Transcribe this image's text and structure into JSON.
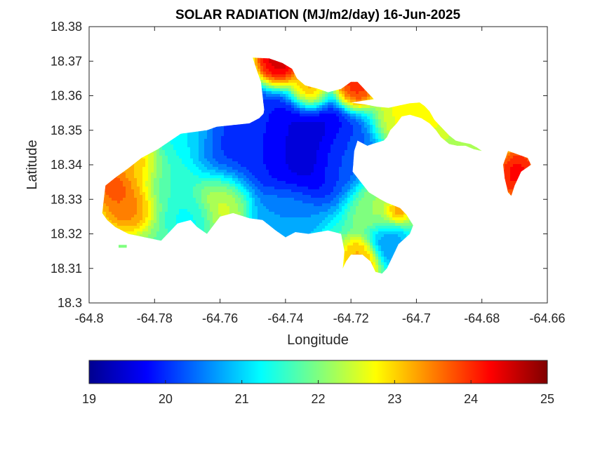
{
  "map": {
    "title": "SOLAR RADIATION (MJ/m2/day) 16-Jun-2025",
    "xlabel": "Longitude",
    "ylabel": "Latitude",
    "xlim": [
      -64.8,
      -64.66
    ],
    "ylim": [
      18.3,
      18.38
    ],
    "xticks": [
      "-64.8",
      "-64.78",
      "-64.76",
      "-64.74",
      "-64.72",
      "-64.7",
      "-64.68",
      "-64.66"
    ],
    "yticks": [
      "18.3",
      "18.31",
      "18.32",
      "18.33",
      "18.34",
      "18.35",
      "18.36",
      "18.37",
      "18.38"
    ],
    "colormap": "jet",
    "colorbar": {
      "min": 19,
      "max": 25,
      "ticks": [
        "19",
        "20",
        "21",
        "22",
        "23",
        "24",
        "25"
      ],
      "colors": [
        "#00008f",
        "#0000ff",
        "#007fff",
        "#00ffff",
        "#7fff7f",
        "#ffff00",
        "#ff7f00",
        "#ff0000",
        "#800000"
      ]
    },
    "grid": false,
    "land_regions": [
      {
        "name": "main-island",
        "coords": [
          [
            -64.7918,
            18.3364
          ],
          [
            -64.788,
            18.339
          ],
          [
            -64.784,
            18.342
          ],
          [
            -64.781,
            18.3435
          ],
          [
            -64.779,
            18.3445
          ],
          [
            -64.772,
            18.349
          ],
          [
            -64.764,
            18.35
          ],
          [
            -64.761,
            18.351
          ],
          [
            -64.756,
            18.3515
          ],
          [
            -64.751,
            18.352
          ],
          [
            -64.748,
            18.3535
          ],
          [
            -64.746,
            18.3555
          ],
          [
            -64.74,
            18.3565
          ],
          [
            -64.733,
            18.3568
          ],
          [
            -64.73,
            18.3575
          ],
          [
            -64.726,
            18.359
          ],
          [
            -64.723,
            18.359
          ],
          [
            -64.72,
            18.358
          ],
          [
            -64.716,
            18.3575
          ],
          [
            -64.712,
            18.3568
          ],
          [
            -64.7085,
            18.3565
          ],
          [
            -64.706,
            18.357
          ],
          [
            -64.702,
            18.3578
          ],
          [
            -64.699,
            18.358
          ],
          [
            -64.6975,
            18.357
          ],
          [
            -64.696,
            18.3555
          ],
          [
            -64.6945,
            18.353
          ],
          [
            -64.6935,
            18.352
          ],
          [
            -64.692,
            18.3505
          ],
          [
            -64.69,
            18.3485
          ],
          [
            -64.688,
            18.347
          ],
          [
            -64.686,
            18.3465
          ],
          [
            -64.6835,
            18.346
          ],
          [
            -64.6815,
            18.345
          ],
          [
            -64.68,
            18.344
          ],
          [
            -64.6825,
            18.3445
          ],
          [
            -64.685,
            18.3455
          ],
          [
            -64.6875,
            18.3455
          ],
          [
            -64.69,
            18.346
          ],
          [
            -64.6925,
            18.348
          ],
          [
            -64.694,
            18.35
          ],
          [
            -64.696,
            18.352
          ],
          [
            -64.6985,
            18.3535
          ],
          [
            -64.702,
            18.3545
          ],
          [
            -64.7045,
            18.354
          ],
          [
            -64.706,
            18.352
          ],
          [
            -64.708,
            18.35
          ],
          [
            -64.709,
            18.348
          ],
          [
            -64.71,
            18.347
          ],
          [
            -64.7135,
            18.346
          ],
          [
            -64.715,
            18.3455
          ],
          [
            -64.718,
            18.347
          ],
          [
            -64.719,
            18.344
          ],
          [
            -64.7195,
            18.338
          ],
          [
            -64.717,
            18.335
          ],
          [
            -64.7145,
            18.332
          ],
          [
            -64.711,
            18.33
          ],
          [
            -64.709,
            18.329
          ],
          [
            -64.705,
            18.3275
          ],
          [
            -64.703,
            18.3255
          ],
          [
            -64.701,
            18.3225
          ],
          [
            -64.702,
            18.32
          ],
          [
            -64.7055,
            18.317
          ],
          [
            -64.707,
            18.314
          ],
          [
            -64.708,
            18.312
          ],
          [
            -64.709,
            18.31
          ],
          [
            -64.7105,
            18.3085
          ],
          [
            -64.7125,
            18.309
          ],
          [
            -64.714,
            18.312
          ],
          [
            -64.7165,
            18.314
          ],
          [
            -64.72,
            18.314
          ],
          [
            -64.7215,
            18.312
          ],
          [
            -64.7225,
            18.31
          ],
          [
            -64.722,
            18.315
          ],
          [
            -64.723,
            18.32
          ],
          [
            -64.727,
            18.321
          ],
          [
            -64.733,
            18.32
          ],
          [
            -64.737,
            18.3205
          ],
          [
            -64.74,
            18.319
          ],
          [
            -64.743,
            18.321
          ],
          [
            -64.747,
            18.324
          ],
          [
            -64.751,
            18.3245
          ],
          [
            -64.756,
            18.326
          ],
          [
            -64.76,
            18.325
          ],
          [
            -64.764,
            18.32
          ],
          [
            -64.767,
            18.322
          ],
          [
            -64.769,
            18.324
          ],
          [
            -64.773,
            18.323
          ],
          [
            -64.776,
            18.32
          ],
          [
            -64.778,
            18.318
          ],
          [
            -64.783,
            18.319
          ],
          [
            -64.788,
            18.32
          ],
          [
            -64.792,
            18.322
          ],
          [
            -64.7945,
            18.324
          ],
          [
            -64.796,
            18.326
          ],
          [
            -64.7955,
            18.33
          ],
          [
            -64.795,
            18.334
          ]
        ]
      },
      {
        "name": "north-peninsula",
        "coords": [
          [
            -64.747,
            18.353
          ],
          [
            -64.7465,
            18.356
          ],
          [
            -64.747,
            18.36
          ],
          [
            -64.7475,
            18.364
          ],
          [
            -64.749,
            18.368
          ],
          [
            -64.75,
            18.371
          ],
          [
            -64.745,
            18.3708
          ],
          [
            -64.741,
            18.3695
          ],
          [
            -64.738,
            18.3678
          ],
          [
            -64.7365,
            18.365
          ],
          [
            -64.734,
            18.363
          ],
          [
            -64.73,
            18.362
          ],
          [
            -64.727,
            18.361
          ],
          [
            -64.723,
            18.362
          ],
          [
            -64.72,
            18.364
          ],
          [
            -64.718,
            18.364
          ],
          [
            -64.715,
            18.361
          ],
          [
            -64.713,
            18.359
          ],
          [
            -64.72,
            18.358
          ],
          [
            -64.73,
            18.357
          ],
          [
            -64.74,
            18.356
          ]
        ]
      },
      {
        "name": "east-tip",
        "coords": [
          [
            -64.672,
            18.344
          ],
          [
            -64.669,
            18.343
          ],
          [
            -64.666,
            18.342
          ],
          [
            -64.665,
            18.34
          ],
          [
            -64.668,
            18.338
          ],
          [
            -64.67,
            18.334
          ],
          [
            -64.671,
            18.331
          ],
          [
            -64.672,
            18.332
          ],
          [
            -64.673,
            18.336
          ],
          [
            -64.6735,
            18.34
          ]
        ]
      },
      {
        "name": "southwest-islet",
        "coords": [
          [
            -64.791,
            18.3168
          ],
          [
            -64.7885,
            18.3168
          ],
          [
            -64.7885,
            18.316
          ],
          [
            -64.791,
            18.316
          ]
        ]
      }
    ],
    "field_centers": [
      {
        "lon": -64.735,
        "lat": 18.346,
        "value": 19.2,
        "radius_deg": 0.0125
      },
      {
        "lon": -64.758,
        "lat": 18.344,
        "value": 19.9,
        "radius_deg": 0.009
      },
      {
        "lon": -64.749,
        "lat": 18.348,
        "value": 20.0,
        "radius_deg": 0.011
      },
      {
        "lon": -64.722,
        "lat": 18.342,
        "value": 20.3,
        "radius_deg": 0.007
      },
      {
        "lon": -64.775,
        "lat": 18.337,
        "value": 21.6,
        "radius_deg": 0.009
      },
      {
        "lon": -64.71,
        "lat": 18.329,
        "value": 22.2,
        "radius_deg": 0.007
      },
      {
        "lon": -64.7085,
        "lat": 18.3175,
        "value": 20.5,
        "radius_deg": 0.0045
      },
      {
        "lon": -64.74,
        "lat": 18.325,
        "value": 20.6,
        "radius_deg": 0.007
      },
      {
        "lon": -64.769,
        "lat": 18.326,
        "value": 21.2,
        "radius_deg": 0.005
      },
      {
        "lon": -64.76,
        "lat": 18.331,
        "value": 22.7,
        "radius_deg": 0.0065
      },
      {
        "lon": -64.788,
        "lat": 18.33,
        "value": 23.8,
        "radius_deg": 0.006
      },
      {
        "lon": -64.785,
        "lat": 18.34,
        "value": 23.5,
        "radius_deg": 0.0055
      },
      {
        "lon": -64.792,
        "lat": 18.334,
        "value": 24.0,
        "radius_deg": 0.0035
      },
      {
        "lon": -64.742,
        "lat": 18.3685,
        "value": 24.9,
        "radius_deg": 0.005
      },
      {
        "lon": -64.733,
        "lat": 18.3615,
        "value": 24.0,
        "radius_deg": 0.0045
      },
      {
        "lon": -64.719,
        "lat": 18.3625,
        "value": 24.3,
        "radius_deg": 0.0045
      },
      {
        "lon": -64.706,
        "lat": 18.327,
        "value": 24.0,
        "radius_deg": 0.0028
      },
      {
        "lon": -64.67,
        "lat": 18.338,
        "value": 24.4,
        "radius_deg": 0.005
      },
      {
        "lon": -64.682,
        "lat": 18.345,
        "value": 22.4,
        "radius_deg": 0.007
      },
      {
        "lon": -64.7,
        "lat": 18.355,
        "value": 22.8,
        "radius_deg": 0.008
      },
      {
        "lon": -64.717,
        "lat": 18.313,
        "value": 23.3,
        "radius_deg": 0.004
      },
      {
        "lon": -64.77,
        "lat": 18.348,
        "value": 21.2,
        "radius_deg": 0.007
      }
    ],
    "background_value": 21.8
  }
}
